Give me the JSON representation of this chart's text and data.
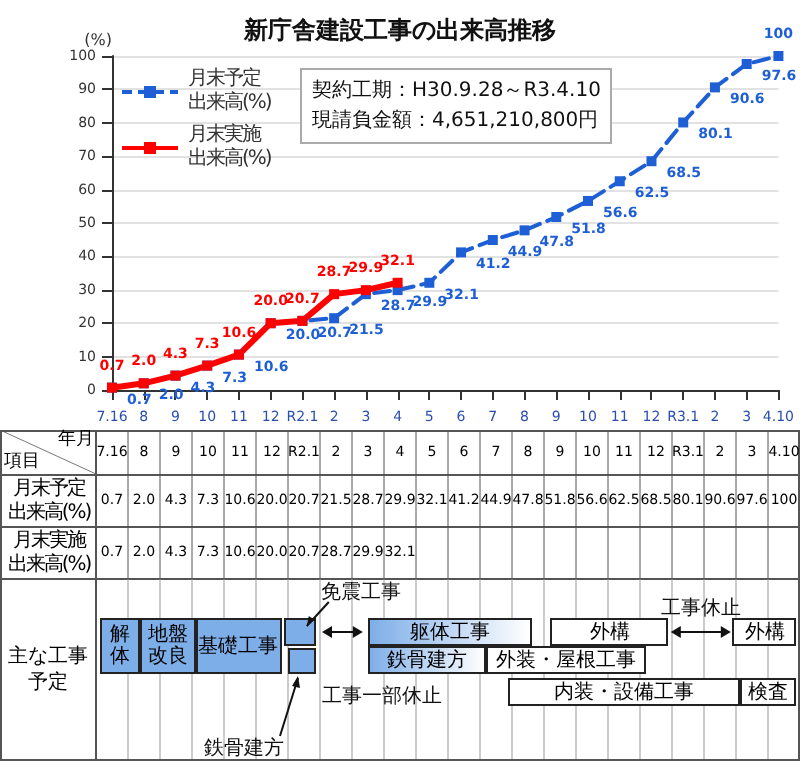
{
  "chart_data": [
    {
      "type": "line",
      "title": "新庁舎建設工事の出来高推移",
      "ylabel": "(%)",
      "xlabel": "年月",
      "annotations": [
        "契約工期：H30.9.28～R3.4.10",
        "現請負金額：4,651,210,800円",
        "項目"
      ],
      "categories": [
        "7.16",
        "8",
        "9",
        "10",
        "11",
        "12",
        "R2.1",
        "2",
        "3",
        "4",
        "5",
        "6",
        "7",
        "8",
        "9",
        "10",
        "11",
        "12",
        "R3.1",
        "2",
        "3",
        "4.10"
      ],
      "ylim": [
        0,
        100
      ],
      "yticks": [
        0,
        10,
        20,
        30,
        40,
        50,
        60,
        70,
        80,
        90,
        100
      ],
      "grid": "y",
      "legend": "top left",
      "marker": "square",
      "series": [
        {
          "name": "月末予定出来高(%)",
          "color": "#1f5fd6",
          "line_style": "dashed",
          "values": [
            0.7,
            2.0,
            4.3,
            7.3,
            10.6,
            20.0,
            20.7,
            21.5,
            28.7,
            29.9,
            32.1,
            41.2,
            44.9,
            47.8,
            51.8,
            56.6,
            62.5,
            68.5,
            80.1,
            90.6,
            97.6,
            100
          ],
          "value_labels": [
            "0.7",
            "2.0",
            "4.3",
            "7.3",
            "10.6",
            "20.0",
            "20.7",
            "21.5",
            "28.7",
            "29.9",
            "32.1",
            "41.2",
            "44.9",
            "47.8",
            "51.8",
            "56.6",
            "62.5",
            "68.5",
            "80.1",
            "90.6",
            "97.6",
            "100"
          ]
        },
        {
          "name": "月末実施出来高(%)",
          "color": "#ff0000",
          "line_style": "solid",
          "values": [
            0.7,
            2.0,
            4.3,
            7.3,
            10.6,
            20.0,
            20.7,
            28.7,
            29.9,
            32.1,
            null,
            null,
            null,
            null,
            null,
            null,
            null,
            null,
            null,
            null,
            null,
            null
          ],
          "value_labels": [
            "0.7",
            "2.0",
            "4.3",
            "7.3",
            "10.6",
            "20.0",
            "20.7",
            "28.7",
            "29.9",
            "32.1",
            null,
            null,
            null,
            null,
            null,
            null,
            null,
            null,
            null,
            null,
            null,
            null
          ]
        }
      ]
    },
    {
      "type": "other",
      "title": "主な工事予定",
      "annotations": [
        "解体",
        "地盤改良",
        "基礎工事",
        "免震工事",
        "鉄骨建方",
        "工事一部休止",
        "躯体工事",
        "鉄骨建方",
        "外装・屋根工事",
        "外構",
        "工事休止",
        "外構",
        "内装・設備工事",
        "検査"
      ]
    }
  ]
}
